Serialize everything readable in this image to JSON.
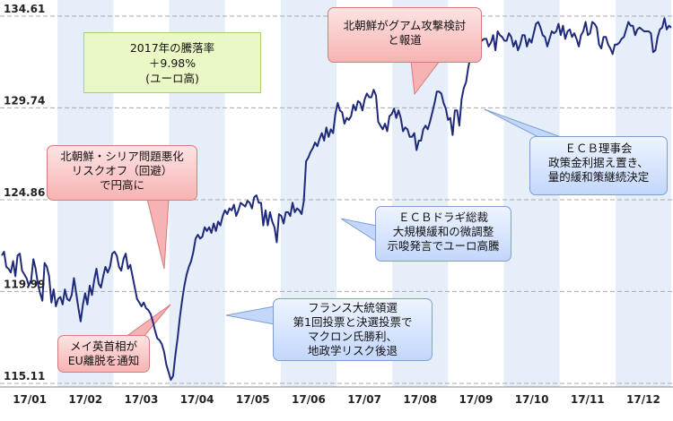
{
  "chart_data": {
    "type": "line",
    "title": "",
    "xlabel": "",
    "ylabel": "",
    "ylim": [
      115.11,
      134.61
    ],
    "y_ticks": [
      "134.61",
      "129.74",
      "124.86",
      "119.99",
      "115.11"
    ],
    "x_ticks": [
      "17/01",
      "17/02",
      "17/03",
      "17/04",
      "17/05",
      "17/06",
      "17/07",
      "17/08",
      "17/09",
      "17/10",
      "17/11",
      "17/12"
    ],
    "line_color": "#1f2a7a",
    "grid": "horizontal dashed",
    "band_color": "#e6eef9",
    "series": [
      {
        "values": [
          121.9,
          122.1,
          121.3,
          121.2,
          121.0,
          121.6,
          120.8,
          121.9,
          122.0,
          121.1,
          120.9,
          120.7,
          120.3,
          120.6,
          121.7,
          121.2,
          120.4,
          119.9,
          119.5,
          121.5,
          121.3,
          120.8,
          119.4,
          120.1,
          119.2,
          119.6,
          119.7,
          119.3,
          120.1,
          119.6,
          119.5,
          119.8,
          120.7,
          119.9,
          119.1,
          118.4,
          119.3,
          119.9,
          119.3,
          120.3,
          119.8,
          120.6,
          121.2,
          120.4,
          120.2,
          120.8,
          121.3,
          121.0,
          121.3,
          122.0,
          122.1,
          121.9,
          121.3,
          121.1,
          121.7,
          122.0,
          121.2,
          121.4,
          120.8,
          120.2,
          119.6,
          119.4,
          119.2,
          119.4,
          119.1,
          119.0,
          118.8,
          118.4,
          117.9,
          117.5,
          117.4,
          117.2,
          116.8,
          116.1,
          115.7,
          115.3,
          115.5,
          116.6,
          117.5,
          118.6,
          119.5,
          120.3,
          120.9,
          121.3,
          121.6,
          122.1,
          122.8,
          123.0,
          122.8,
          122.9,
          123.4,
          123.2,
          123.4,
          123.1,
          123.6,
          123.2,
          123.7,
          123.5,
          124.0,
          124.3,
          124.1,
          124.4,
          124.3,
          124.6,
          124.0,
          124.3,
          124.7,
          124.6,
          124.5,
          124.8,
          124.7,
          124.4,
          125.0,
          125.1,
          124.7,
          124.7,
          123.5,
          124.3,
          123.5,
          124.2,
          123.7,
          123.4,
          122.6,
          124.1,
          124.0,
          123.6,
          124.2,
          124.2,
          124.0,
          124.7,
          124.2,
          124.4,
          124.3,
          124.1,
          124.8,
          126.9,
          127.1,
          127.4,
          127.6,
          127.9,
          127.7,
          128.1,
          128.4,
          128.0,
          128.7,
          128.2,
          128.6,
          128.4,
          129.4,
          130.0,
          129.6,
          129.5,
          128.9,
          129.2,
          129.1,
          129.3,
          129.9,
          129.6,
          130.1,
          130.0,
          129.6,
          130.2,
          130.5,
          130.3,
          130.3,
          130.7,
          130.4,
          129.0,
          128.8,
          128.6,
          128.9,
          128.5,
          129.3,
          129.4,
          129.7,
          129.2,
          129.6,
          129.2,
          128.5,
          128.7,
          128.6,
          128.2,
          128.2,
          128.4,
          127.5,
          128.0,
          128.0,
          128.6,
          128.8,
          128.6,
          129.0,
          129.5,
          130.0,
          130.6,
          130.6,
          130.5,
          130.0,
          129.7,
          129.1,
          129.2,
          128.3,
          129.6,
          129.6,
          128.8,
          130.2,
          130.8,
          131.1,
          131.9,
          132.5,
          133.5,
          133.7,
          133.3,
          133.6,
          133.3,
          133.4,
          133.4,
          133.0,
          133.2,
          133.6,
          132.8,
          133.8,
          133.6,
          133.5,
          133.3,
          133.3,
          133.7,
          133.5,
          133.0,
          133.3,
          132.8,
          133.1,
          133.6,
          133.6,
          133.0,
          133.4,
          133.2,
          133.7,
          134.2,
          134.3,
          134.0,
          133.6,
          133.5,
          133.0,
          133.4,
          133.8,
          133.7,
          133.8,
          134.2,
          133.6,
          134.1,
          133.4,
          133.8,
          133.9,
          133.5,
          133.7,
          133.4,
          133.0,
          133.6,
          133.8,
          134.3,
          133.6,
          133.7,
          134.3,
          134.2,
          134.0,
          133.1,
          132.9,
          133.5,
          133.5,
          133.1,
          132.9,
          132.6,
          133.1,
          133.1,
          133.2,
          133.4,
          133.5,
          133.9,
          134.3,
          134.1,
          134.1,
          133.6,
          133.9,
          134.0,
          133.9,
          133.8,
          133.8,
          133.8,
          133.7,
          132.7,
          132.8,
          133.5,
          133.9,
          134.0,
          134.5,
          133.9,
          134.1,
          134.0
        ]
      }
    ]
  },
  "summary": {
    "lines": [
      "2017年の騰落率",
      "＋9.98%",
      "(ユーロ高)"
    ]
  },
  "annotations": [
    {
      "id": "north-korea-syria",
      "style": "red",
      "lines": [
        "北朝鮮・シリア問題悪化",
        "リスクオフ（回避）",
        "で円高に"
      ]
    },
    {
      "id": "may-brexit",
      "style": "red",
      "lines": [
        "メイ英首相が",
        "EU離脱を通知"
      ]
    },
    {
      "id": "north-korea-guam",
      "style": "red",
      "lines": [
        "北朝鮮がグアム攻撃検討",
        "と報道"
      ]
    },
    {
      "id": "ecb-draghi",
      "style": "blue",
      "lines": [
        "ＥＣＢドラギ総裁",
        "大規模緩和の微調整",
        "示唆発言でユーロ高騰"
      ]
    },
    {
      "id": "france-election",
      "style": "blue",
      "lines": [
        "フランス大統領選",
        "第1回投票と決選投票で",
        "マクロン氏勝利、",
        "地政学リスク後退"
      ]
    },
    {
      "id": "ecb-council",
      "style": "blue",
      "lines": [
        "ＥＣＢ理事会",
        "政策金利据え置き、",
        "量的緩和策継続決定"
      ]
    }
  ]
}
